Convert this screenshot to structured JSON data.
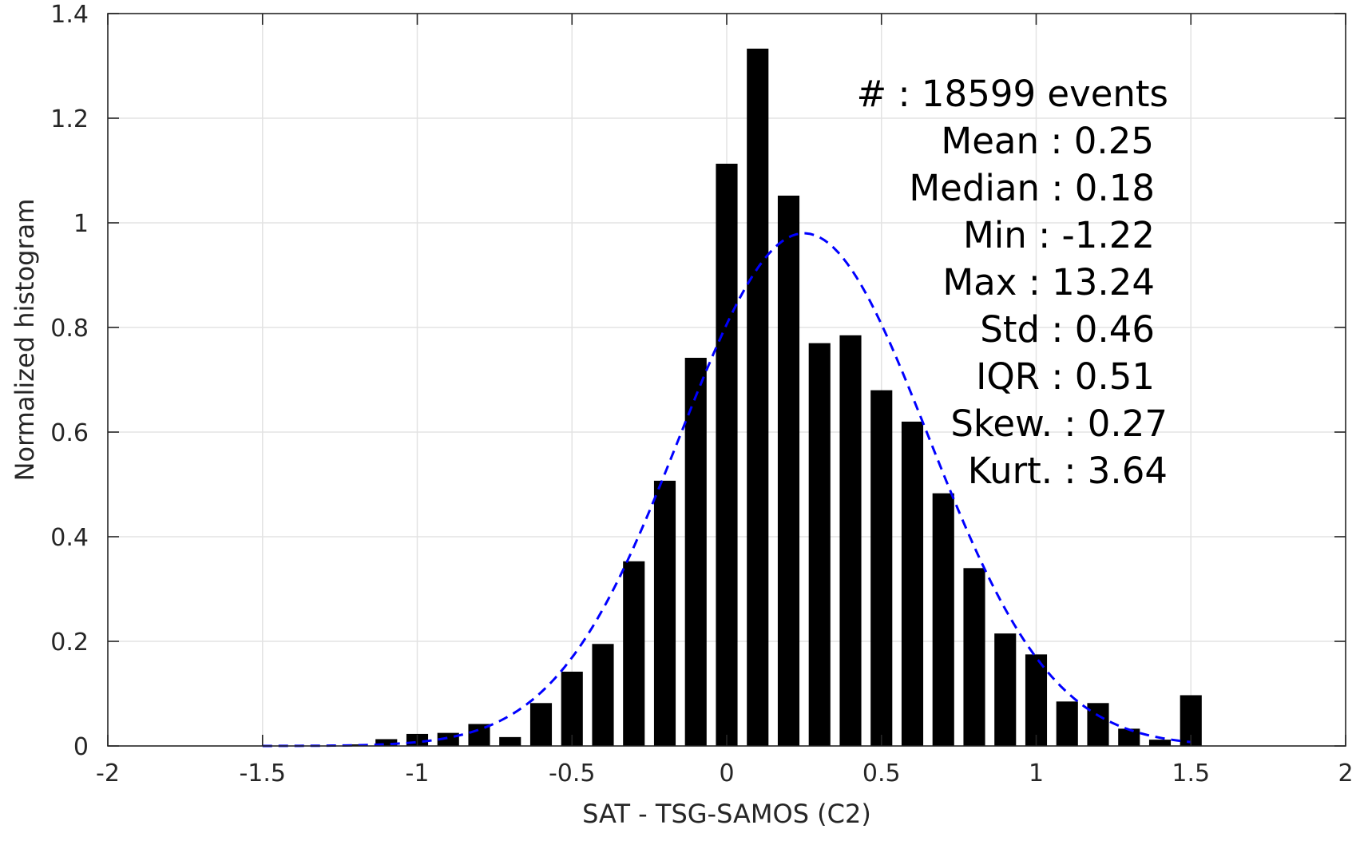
{
  "chart_data": {
    "type": "bar",
    "title": "",
    "xlabel": "SAT - TSG-SAMOS (C2)",
    "ylabel": "Normalized histogram",
    "xlim": [
      -2,
      2
    ],
    "ylim": [
      0,
      1.4
    ],
    "xticks": [
      -2,
      -1.5,
      -1,
      -0.5,
      0,
      0.5,
      1,
      1.5,
      2
    ],
    "xtick_labels": [
      "-2",
      "-1.5",
      "-1",
      "-0.5",
      "0",
      "0.5",
      "1",
      "1.5",
      "2"
    ],
    "yticks": [
      0,
      0.2,
      0.4,
      0.6,
      0.8,
      1,
      1.2,
      1.4
    ],
    "ytick_labels": [
      "0",
      "0.2",
      "0.4",
      "0.6",
      "0.8",
      "1",
      "1.2",
      "1.4"
    ],
    "grid": true,
    "bar_color": "#000000",
    "bar_width": 0.07,
    "x": [
      -1.2,
      -1.1,
      -1.0,
      -0.9,
      -0.8,
      -0.7,
      -0.6,
      -0.5,
      -0.4,
      -0.3,
      -0.2,
      -0.1,
      0.0,
      0.1,
      0.2,
      0.3,
      0.4,
      0.5,
      0.6,
      0.7,
      0.8,
      0.9,
      1.0,
      1.1,
      1.2,
      1.3,
      1.4,
      1.5
    ],
    "values": [
      0.003,
      0.013,
      0.023,
      0.025,
      0.042,
      0.017,
      0.082,
      0.142,
      0.195,
      0.353,
      0.507,
      0.742,
      1.113,
      1.333,
      1.052,
      0.77,
      0.785,
      0.68,
      0.62,
      0.483,
      0.34,
      0.215,
      0.175,
      0.085,
      0.082,
      0.033,
      0.012,
      0.097
    ],
    "fit": {
      "type": "gaussian",
      "color": "#0000ff",
      "style": "dashed",
      "mean": 0.25,
      "std": 0.4,
      "peak": 0.98,
      "x_range": [
        -1.5,
        1.5
      ]
    },
    "annotation": {
      "lines": [
        "#  : 18599 events",
        "Mean : 0.25",
        "Median : 0.18",
        "Min : -1.22",
        "Max : 13.24",
        "Std : 0.46",
        "IQR : 0.51",
        "Skew. : 0.27",
        "Kurt. : 3.64"
      ]
    }
  }
}
